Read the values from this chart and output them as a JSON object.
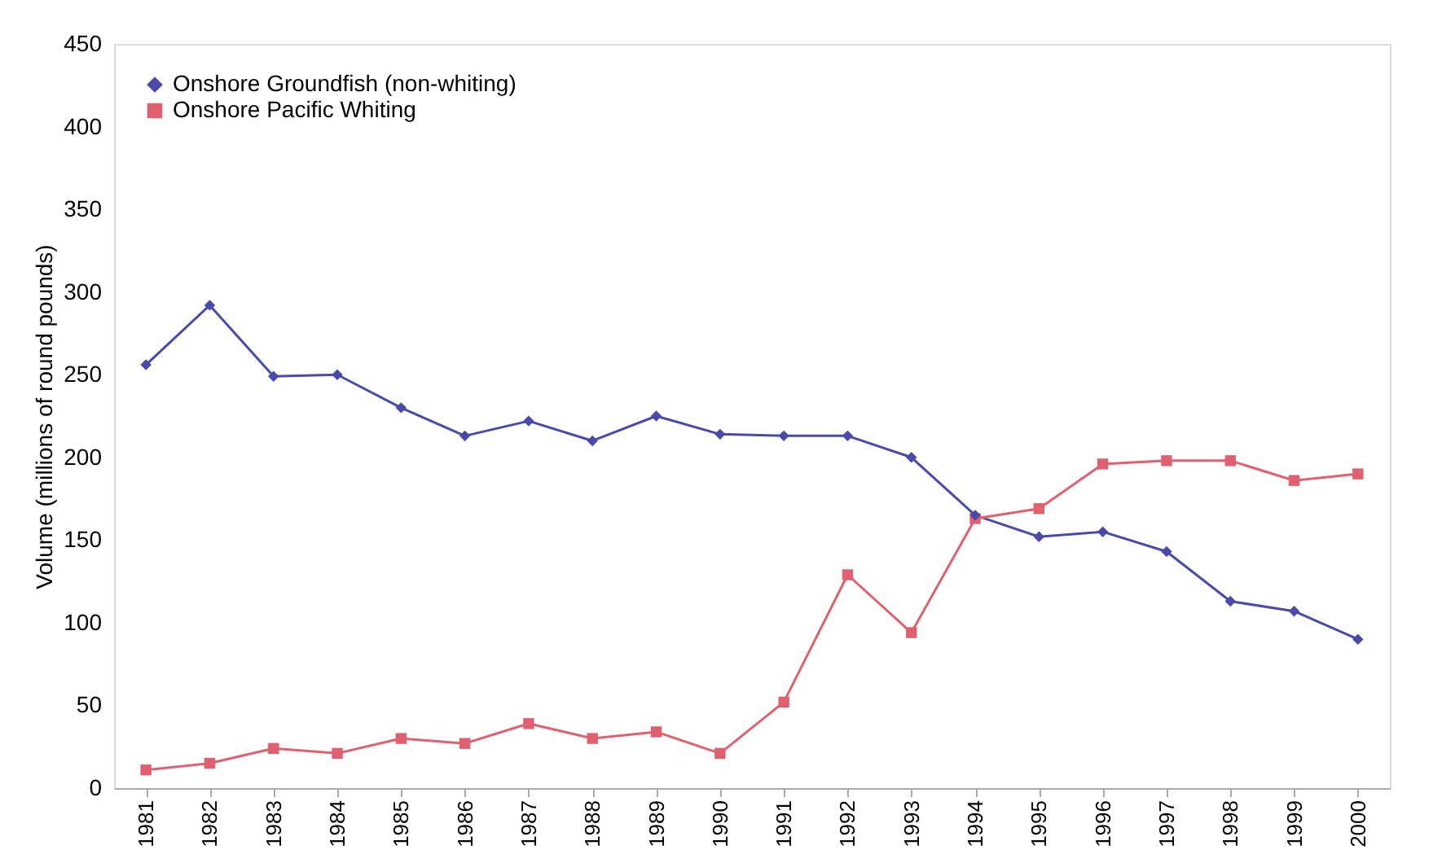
{
  "chart_data": {
    "type": "line",
    "ylabel": "Volume (millions of round pounds)",
    "categories": [
      "1981",
      "1982",
      "1983",
      "1984",
      "1985",
      "1986",
      "1987",
      "1988",
      "1989",
      "1990",
      "1991",
      "1992",
      "1993",
      "1994",
      "1995",
      "1996",
      "1997",
      "1998",
      "1999",
      "2000"
    ],
    "series": [
      {
        "name": "Onshore Groundfish (non-whiting)",
        "color": "#4a4aa8",
        "marker": "diamond",
        "values": [
          256,
          292,
          249,
          250,
          230,
          213,
          222,
          210,
          225,
          214,
          213,
          213,
          200,
          165,
          152,
          155,
          143,
          113,
          107,
          90
        ]
      },
      {
        "name": "Onshore Pacific Whiting",
        "color": "#e06070",
        "marker": "square",
        "values": [
          11,
          15,
          24,
          21,
          30,
          27,
          39,
          30,
          34,
          21,
          52,
          129,
          94,
          163,
          169,
          196,
          198,
          198,
          186,
          190
        ]
      }
    ],
    "ylim": [
      0,
      450
    ],
    "yticks": [
      0,
      50,
      100,
      150,
      200,
      250,
      300,
      350,
      400,
      450
    ],
    "grid": false,
    "legend": "top left"
  }
}
